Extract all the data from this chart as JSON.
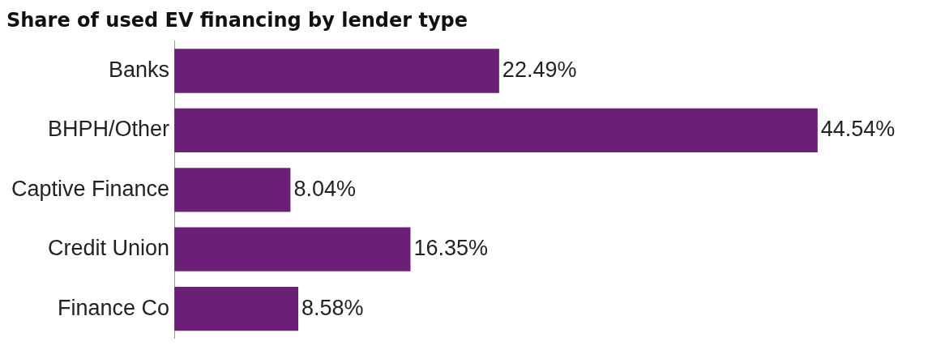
{
  "chart_data": {
    "type": "bar",
    "orientation": "horizontal",
    "title": "Share of used EV financing by lender type",
    "categories": [
      "Banks",
      "BHPH/Other",
      "Captive Finance",
      "Credit Union",
      "Finance Co"
    ],
    "values": [
      22.49,
      44.54,
      8.04,
      16.35,
      8.58
    ],
    "value_labels": [
      "22.49%",
      "44.54%",
      "8.04%",
      "16.35%",
      "8.58%"
    ],
    "color": "#6b1f76"
  }
}
